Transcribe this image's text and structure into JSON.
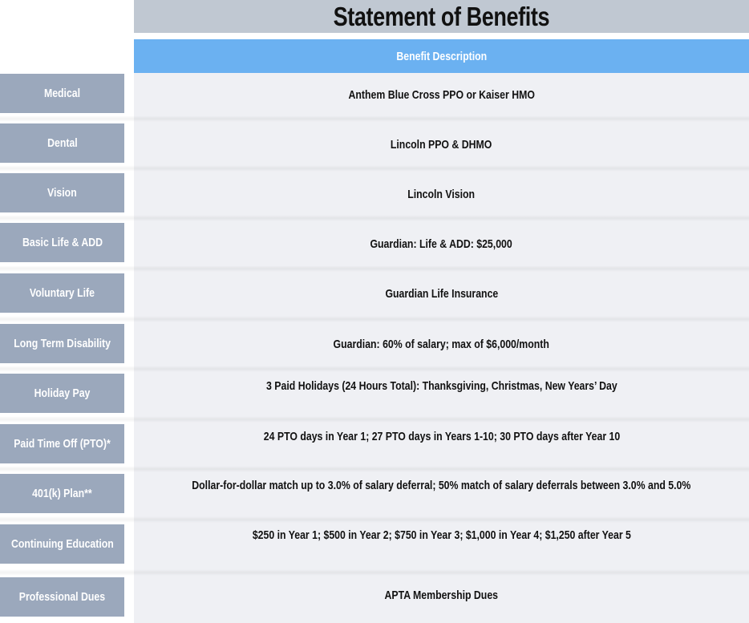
{
  "title": "Statement of Benefits",
  "column_header": "Benefit Description",
  "colors": {
    "title_bar": "#c0c8d2",
    "header_bar": "#6bb1f1",
    "label_bg": "#9ba8bc",
    "desc_bg": "#eff0f4"
  },
  "rows": [
    {
      "label": "Medical",
      "description": "Anthem Blue Cross PPO or Kaiser HMO"
    },
    {
      "label": "Dental",
      "description": "Lincoln PPO & DHMO"
    },
    {
      "label": "Vision",
      "description": "Lincoln Vision"
    },
    {
      "label": "Basic Life & ADD",
      "description": "Guardian: Life & ADD: $25,000"
    },
    {
      "label": "Voluntary Life",
      "description": "Guardian Life Insurance"
    },
    {
      "label": "Long Term Disability",
      "description": "Guardian: 60% of salary;  max of $6,000/month"
    },
    {
      "label": "Holiday Pay",
      "description": "3 Paid Holidays (24 Hours Total): Thanksgiving, Christmas, New Years’ Day"
    },
    {
      "label": "Paid Time Off (PTO)*",
      "description": "24 PTO days in Year 1; 27 PTO days in Years 1-10; 30 PTO days after Year 10"
    },
    {
      "label": "401(k) Plan**",
      "description": "Dollar-for-dollar match up to 3.0% of salary deferral;  50% match of salary deferrals between 3.0% and 5.0%"
    },
    {
      "label": "Continuing Education",
      "description": "$250 in Year 1; $500 in Year 2; $750 in Year 3;  $1,000 in Year 4; $1,250 after Year 5"
    },
    {
      "label": "Professional Dues",
      "description": "APTA Membership Dues"
    }
  ]
}
